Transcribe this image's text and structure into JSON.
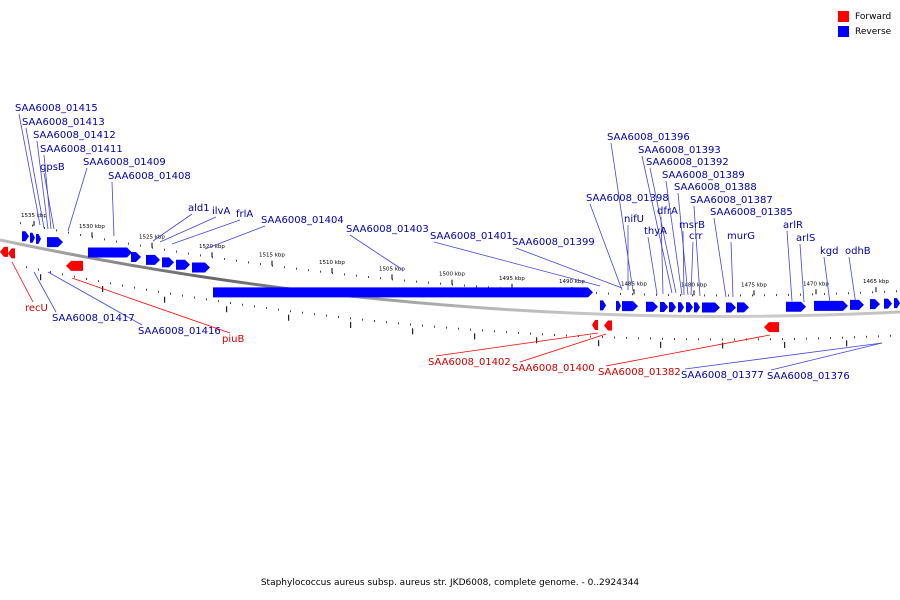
{
  "colors": {
    "forward": "#ff0000",
    "reverse": "#0000ff",
    "backbone": "#888888",
    "leader_forward": "#ff0000",
    "leader_reverse": "#4444dd"
  },
  "legend": {
    "forward_label": "Forward",
    "reverse_label": "Reverse"
  },
  "caption": "Staphylococcus aureus subsp. aureus str. JKD6008, complete genome. - 0..2924344",
  "ticks": [
    "1535 kbp",
    "1530 kbp",
    "1525 kbp",
    "1520 kbp",
    "1515 kbp",
    "1510 kbp",
    "1505 kbp",
    "1500 kbp",
    "1495 kbp",
    "1490 kbp",
    "1485 kbp",
    "1480 kbp",
    "1475 kbp",
    "1470 kbp",
    "1465 kbp"
  ],
  "reverse_labels": [
    "SAA6008_01415",
    "SAA6008_01413",
    "SAA6008_01412",
    "SAA6008_01411",
    "gpsB",
    "SAA6008_01409",
    "SAA6008_01408",
    "ald1",
    "ilvA",
    "frlA",
    "SAA6008_01404",
    "SAA6008_01403",
    "SAA6008_01401",
    "SAA6008_01399",
    "SAA6008_01398",
    "nifU",
    "SAA6008_01396",
    "SAA6008_01393",
    "SAA6008_01392",
    "dfrA",
    "thyA",
    "SAA6008_01389",
    "SAA6008_01388",
    "msrB",
    "crr",
    "SAA6008_01387",
    "SAA6008_01385",
    "murG",
    "arlR",
    "arlS",
    "kgd",
    "odhB",
    "SAA6008_01417",
    "SAA6008_01416",
    "SAA6008_01377",
    "SAA6008_01376"
  ],
  "forward_labels": [
    "recU",
    "piuB",
    "SAA6008_01402",
    "SAA6008_01400",
    "SAA6008_01382"
  ]
}
